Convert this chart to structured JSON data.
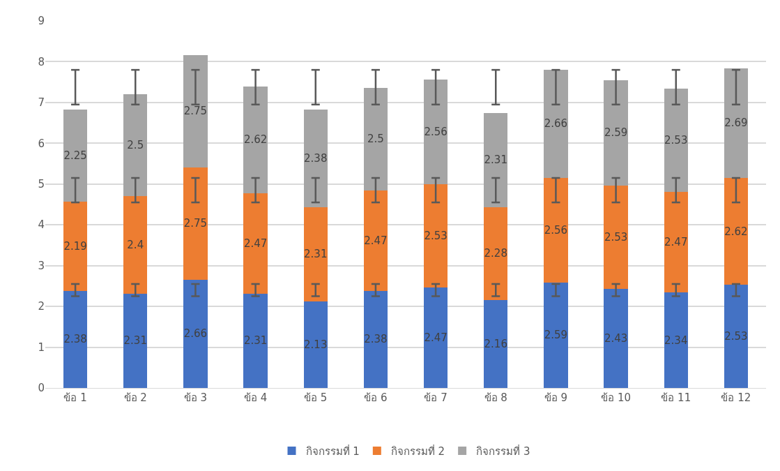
{
  "chart_data": {
    "type": "bar",
    "stacked": true,
    "categories": [
      "ข้อ 1",
      "ข้อ 2",
      "ข้อ 3",
      "ข้อ 4",
      "ข้อ 5",
      "ข้อ 6",
      "ข้อ 7",
      "ข้อ 8",
      "ข้อ 9",
      "ข้อ 10",
      "ข้อ 11",
      "ข้อ 12"
    ],
    "series": [
      {
        "name": "กิจกรรมที่ 1",
        "color": "#4472c4",
        "values": [
          2.38,
          2.31,
          2.66,
          2.31,
          2.13,
          2.38,
          2.47,
          2.16,
          2.59,
          2.43,
          2.34,
          2.53
        ],
        "errors": [
          [
            2.25,
            2.55
          ],
          [
            2.25,
            2.55
          ],
          [
            2.25,
            2.55
          ],
          [
            2.25,
            2.55
          ],
          [
            2.25,
            2.55
          ],
          [
            2.25,
            2.55
          ],
          [
            2.25,
            2.55
          ],
          [
            2.25,
            2.55
          ],
          [
            2.25,
            2.55
          ],
          [
            2.25,
            2.55
          ],
          [
            2.25,
            2.55
          ],
          [
            2.25,
            2.55
          ]
        ]
      },
      {
        "name": "กิจกรรมที่ 2",
        "color": "#ed7d31",
        "values": [
          2.19,
          2.4,
          2.75,
          2.47,
          2.31,
          2.47,
          2.53,
          2.28,
          2.56,
          2.53,
          2.47,
          2.62
        ],
        "errors": [
          [
            4.55,
            5.15
          ],
          [
            4.55,
            5.15
          ],
          [
            4.55,
            5.15
          ],
          [
            4.55,
            5.15
          ],
          [
            4.55,
            5.15
          ],
          [
            4.55,
            5.15
          ],
          [
            4.55,
            5.15
          ],
          [
            4.55,
            5.15
          ],
          [
            4.55,
            5.15
          ],
          [
            4.55,
            5.15
          ],
          [
            4.55,
            5.15
          ],
          [
            4.55,
            5.15
          ]
        ]
      },
      {
        "name": "กิจกรรมที่ 3",
        "color": "#a5a5a5",
        "values": [
          2.25,
          2.5,
          2.75,
          2.62,
          2.38,
          2.5,
          2.56,
          2.31,
          2.66,
          2.59,
          2.53,
          2.69
        ],
        "errors": [
          [
            6.95,
            7.8
          ],
          [
            6.95,
            7.8
          ],
          [
            6.95,
            7.8
          ],
          [
            6.95,
            7.8
          ],
          [
            6.95,
            7.8
          ],
          [
            6.95,
            7.8
          ],
          [
            6.95,
            7.8
          ],
          [
            6.95,
            7.8
          ],
          [
            6.95,
            7.8
          ],
          [
            6.95,
            7.8
          ],
          [
            6.95,
            7.8
          ],
          [
            6.95,
            7.8
          ]
        ]
      }
    ],
    "ylim": [
      0,
      9
    ],
    "yticks": [
      0,
      1,
      2,
      3,
      4,
      5,
      6,
      7,
      8,
      9
    ],
    "grid": "y",
    "legend": "bottom",
    "data_labels": true
  }
}
